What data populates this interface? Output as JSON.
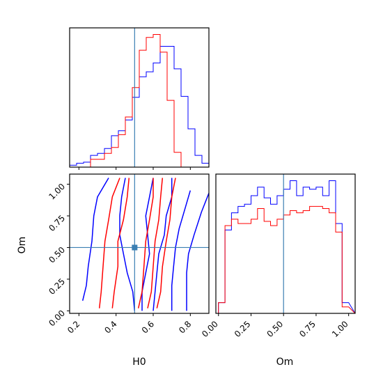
{
  "chart_data": {
    "type": "corner",
    "parameters": [
      "H0",
      "Om"
    ],
    "truth": {
      "H0": 0.5,
      "Om": 0.5,
      "color": "#3b7fb3"
    },
    "series_colors": {
      "blue": "#0000ff",
      "red": "#ff0000"
    },
    "panels": {
      "hist_H0": {
        "xlim": [
          0.15,
          0.9
        ],
        "bins": [
          0.15,
          0.1875,
          0.225,
          0.2625,
          0.3,
          0.3375,
          0.375,
          0.4125,
          0.45,
          0.4875,
          0.525,
          0.5625,
          0.6,
          0.6375,
          0.675,
          0.7125,
          0.75,
          0.7875,
          0.825,
          0.8625,
          0.9
        ],
        "blue": [
          2,
          4,
          5,
          12,
          14,
          19,
          32,
          37,
          48,
          71,
          92,
          97,
          106,
          123,
          123,
          100,
          72,
          39,
          12,
          4
        ],
        "red": [
          0,
          0,
          0,
          8,
          8,
          14,
          20,
          33,
          51,
          81,
          119,
          132,
          135,
          117,
          68,
          15,
          0,
          0,
          0,
          0
        ]
      },
      "hist_Om": {
        "xlim": [
          -0.02,
          1.05
        ],
        "bins": [
          0.0,
          0.05,
          0.1,
          0.15,
          0.2,
          0.25,
          0.3,
          0.35,
          0.4,
          0.45,
          0.5,
          0.55,
          0.6,
          0.65,
          0.7,
          0.75,
          0.8,
          0.85,
          0.9,
          0.95,
          1.0,
          1.05
        ],
        "blue": [
          5,
          39,
          47,
          50,
          51,
          55,
          59,
          54,
          51,
          55,
          58,
          62,
          55,
          59,
          58,
          59,
          55,
          62,
          42,
          5
        ],
        "red": [
          5,
          41,
          44,
          42,
          42,
          44,
          49,
          43,
          41,
          44,
          46,
          48,
          47,
          48,
          50,
          50,
          49,
          47,
          38,
          3
        ]
      },
      "contour": {
        "xlim": [
          0.15,
          0.9
        ],
        "ylim": [
          -0.02,
          1.08
        ],
        "blue": [
          [
            [
              0.36,
              1.05
            ],
            [
              0.3,
              0.9
            ],
            [
              0.28,
              0.75
            ],
            [
              0.27,
              0.55
            ],
            [
              0.25,
              0.35
            ],
            [
              0.24,
              0.2
            ],
            [
              0.22,
              0.08
            ]
          ],
          [
            [
              0.45,
              1.05
            ],
            [
              0.43,
              0.9
            ],
            [
              0.42,
              0.75
            ],
            [
              0.42,
              0.6
            ],
            [
              0.44,
              0.45
            ],
            [
              0.46,
              0.3
            ],
            [
              0.49,
              0.15
            ],
            [
              0.5,
              0.0
            ]
          ],
          [
            [
              0.6,
              1.05
            ],
            [
              0.58,
              0.9
            ],
            [
              0.56,
              0.75
            ],
            [
              0.57,
              0.6
            ],
            [
              0.58,
              0.45
            ],
            [
              0.56,
              0.3
            ],
            [
              0.54,
              0.15
            ],
            [
              0.54,
              0.0
            ]
          ],
          [
            [
              0.7,
              1.05
            ],
            [
              0.7,
              0.9
            ],
            [
              0.67,
              0.75
            ],
            [
              0.66,
              0.6
            ],
            [
              0.63,
              0.45
            ],
            [
              0.62,
              0.3
            ],
            [
              0.61,
              0.15
            ],
            [
              0.6,
              0.0
            ]
          ],
          [
            [
              0.8,
              0.95
            ],
            [
              0.77,
              0.8
            ],
            [
              0.74,
              0.65
            ],
            [
              0.72,
              0.5
            ],
            [
              0.71,
              0.35
            ],
            [
              0.7,
              0.2
            ],
            [
              0.7,
              0.0
            ]
          ],
          [
            [
              0.9,
              0.93
            ],
            [
              0.86,
              0.78
            ],
            [
              0.82,
              0.6
            ],
            [
              0.79,
              0.45
            ],
            [
              0.78,
              0.3
            ],
            [
              0.78,
              0.15
            ],
            [
              0.78,
              0.0
            ]
          ]
        ],
        "red": [
          [
            [
              0.42,
              1.05
            ],
            [
              0.38,
              0.9
            ],
            [
              0.36,
              0.72
            ],
            [
              0.34,
              0.55
            ],
            [
              0.33,
              0.35
            ],
            [
              0.32,
              0.15
            ],
            [
              0.31,
              0.02
            ]
          ],
          [
            [
              0.47,
              1.05
            ],
            [
              0.46,
              0.9
            ],
            [
              0.44,
              0.72
            ],
            [
              0.41,
              0.55
            ],
            [
              0.41,
              0.35
            ],
            [
              0.39,
              0.15
            ],
            [
              0.38,
              0.02
            ]
          ],
          [
            [
              0.6,
              1.05
            ],
            [
              0.6,
              0.9
            ],
            [
              0.58,
              0.72
            ],
            [
              0.56,
              0.55
            ],
            [
              0.55,
              0.35
            ],
            [
              0.54,
              0.15
            ],
            [
              0.52,
              0.02
            ]
          ],
          [
            [
              0.65,
              1.05
            ],
            [
              0.64,
              0.9
            ],
            [
              0.63,
              0.72
            ],
            [
              0.61,
              0.55
            ],
            [
              0.6,
              0.35
            ],
            [
              0.59,
              0.15
            ],
            [
              0.57,
              0.02
            ]
          ],
          [
            [
              0.72,
              1.05
            ],
            [
              0.7,
              0.9
            ],
            [
              0.69,
              0.72
            ],
            [
              0.67,
              0.55
            ],
            [
              0.65,
              0.35
            ],
            [
              0.64,
              0.15
            ],
            [
              0.62,
              0.02
            ]
          ]
        ]
      }
    },
    "axes": {
      "H0": {
        "label": "H0",
        "ticks": [
          0.2,
          0.4,
          0.6,
          0.8
        ],
        "ticklabels": [
          "0.2",
          "0.4",
          "0.6",
          "0.8"
        ]
      },
      "Om": {
        "label": "Om",
        "ticks": [
          0.0,
          0.25,
          0.5,
          0.75,
          1.0
        ],
        "ticklabels": [
          "0.00",
          "0.25",
          "0.50",
          "0.75",
          "1.00"
        ]
      }
    }
  }
}
